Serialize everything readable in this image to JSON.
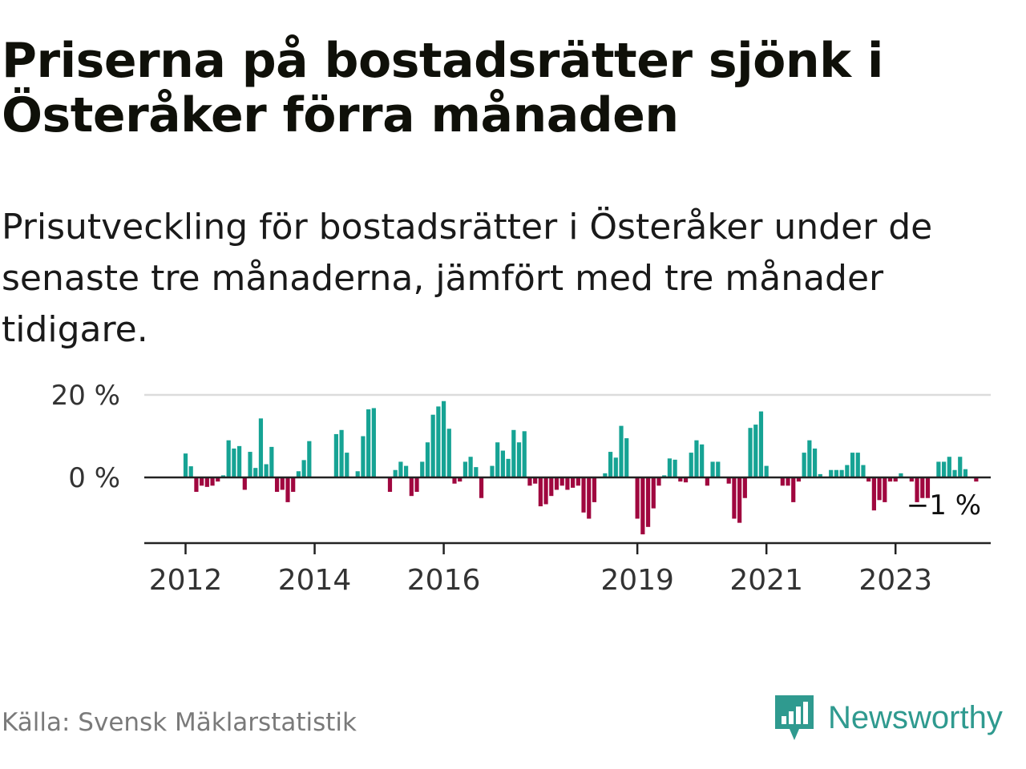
{
  "title": "Priserna på bostadsrätter sjönk i Österåker förra månaden",
  "subtitle": "Prisutveckling för bostadsrätter i Österåker under de senaste tre månaderna, jämfört med tre månader tidigare.",
  "source": "Källa: Svensk Mäklarstatistik",
  "brand": "Newsworthy",
  "colors": {
    "positive": "#16a394",
    "negative": "#a0073f",
    "logo": "#2f9a8f"
  },
  "chart_data": {
    "type": "bar",
    "ylabel": "",
    "xlabel": "",
    "ylim": [
      -16,
      20
    ],
    "yticks": [
      {
        "value": 20,
        "label": "20 %"
      },
      {
        "value": 0,
        "label": "0 %"
      }
    ],
    "xticks": [
      {
        "label": "2012",
        "index": 0
      },
      {
        "label": "2014",
        "index": 24
      },
      {
        "label": "2016",
        "index": 48
      },
      {
        "label": "2019",
        "index": 84
      },
      {
        "label": "2021",
        "index": 108
      },
      {
        "label": "2023",
        "index": 132
      }
    ],
    "last_value_label": "−1 %",
    "series_start": "2012-01",
    "values": [
      5.8,
      2.7,
      -3.5,
      -2.0,
      -2.3,
      -2.0,
      -1.0,
      0.5,
      9.0,
      7.0,
      7.6,
      -3.0,
      6.2,
      2.3,
      14.3,
      3.2,
      7.4,
      -3.5,
      -3.0,
      -6.0,
      -3.5,
      1.5,
      4.2,
      8.8,
      0,
      0,
      0,
      0,
      10.5,
      11.5,
      6.0,
      0,
      1.5,
      10.0,
      16.5,
      16.8,
      0,
      0,
      -3.5,
      1.8,
      3.8,
      2.8,
      -4.5,
      -3.5,
      3.8,
      8.5,
      15.2,
      17.2,
      18.5,
      11.8,
      -1.5,
      -1.0,
      3.8,
      5.0,
      2.5,
      -5.0,
      0,
      2.8,
      8.5,
      6.5,
      4.5,
      11.5,
      8.5,
      11.2,
      -2.0,
      -1.5,
      -7.0,
      -6.5,
      -4.5,
      -3.0,
      -2.0,
      -3.0,
      -2.5,
      -2.0,
      -8.5,
      -10.0,
      -6.0,
      0,
      1.0,
      6.2,
      4.8,
      12.5,
      9.5,
      0,
      -10.0,
      -13.8,
      -12.0,
      -7.5,
      -2.0,
      0.5,
      4.6,
      4.3,
      -1.0,
      -1.2,
      6.0,
      9.0,
      8.0,
      -2.0,
      3.8,
      3.8,
      0,
      -1.5,
      -10.0,
      -11.0,
      -5.0,
      12.0,
      12.8,
      16.0,
      2.8,
      0,
      0,
      -2.0,
      -2.0,
      -6.0,
      -1.0,
      6.0,
      9.0,
      7.0,
      0.8,
      0,
      1.8,
      1.8,
      1.8,
      3.0,
      6.0,
      6.0,
      3.0,
      -1.0,
      -8.0,
      -5.5,
      -6.0,
      -1.0,
      -1.0,
      1.0,
      0,
      -1.0,
      -6.0,
      -5.0,
      -5.0,
      0,
      3.8,
      3.8,
      5.0,
      1.8,
      5.0,
      2.0,
      0,
      -1.0
    ]
  }
}
